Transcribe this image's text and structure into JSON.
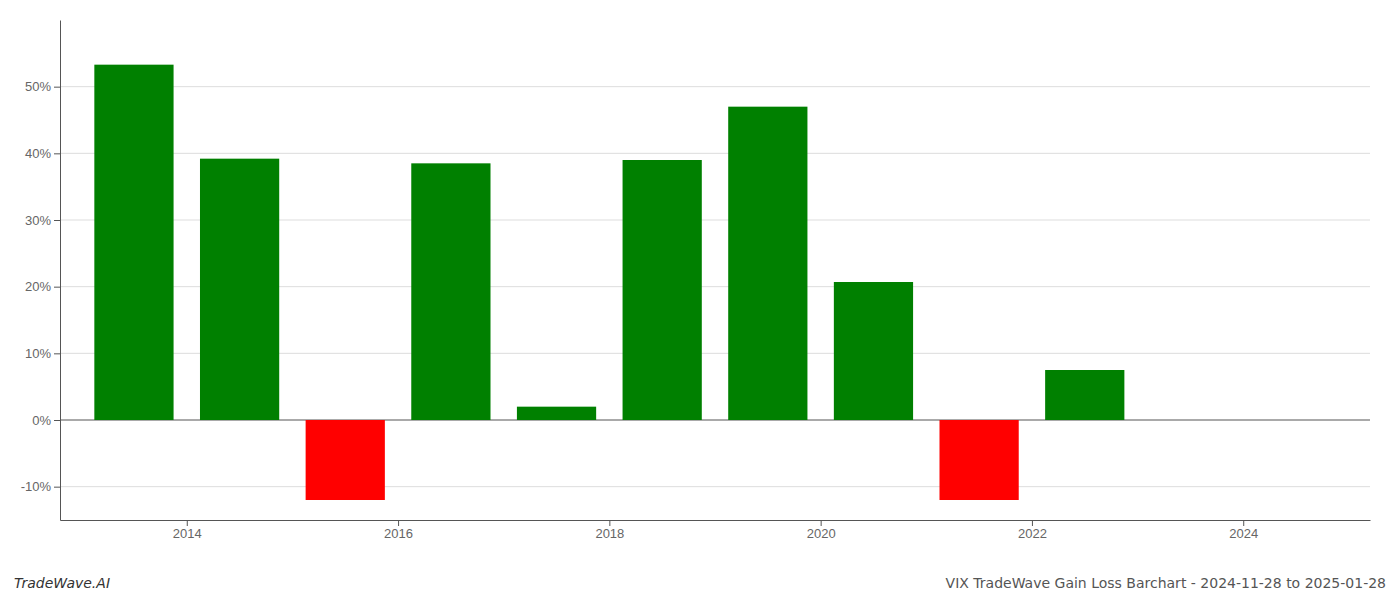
{
  "chart_data": {
    "type": "bar",
    "title": "VIX TradeWave Gain Loss Barchart - 2024-11-28 to 2025-01-28",
    "annotations": [
      "TradeWave.AI"
    ],
    "x": [
      2013.5,
      2014.5,
      2015.5,
      2016.5,
      2017.5,
      2018.5,
      2019.5,
      2020.5,
      2021.5,
      2022.5
    ],
    "values": [
      53.3,
      39.2,
      -12.0,
      38.5,
      2.0,
      39.0,
      47.0,
      20.7,
      -12.0,
      7.5
    ],
    "colors": [
      "#008000",
      "#008000",
      "#ff0000",
      "#008000",
      "#008000",
      "#008000",
      "#008000",
      "#008000",
      "#ff0000",
      "#008000"
    ],
    "xlim": [
      2012.8,
      2025.2
    ],
    "xticks": [
      2014,
      2016,
      2018,
      2020,
      2022,
      2024
    ],
    "ylim": [
      -15,
      60
    ],
    "yticks": [
      {
        "value": -10,
        "label": "-10%"
      },
      {
        "value": 0,
        "label": "0%"
      },
      {
        "value": 10,
        "label": "10%"
      },
      {
        "value": 20,
        "label": "20%"
      },
      {
        "value": 30,
        "label": "30%"
      },
      {
        "value": 40,
        "label": "40%"
      },
      {
        "value": 50,
        "label": "50%"
      }
    ],
    "grid": true
  }
}
